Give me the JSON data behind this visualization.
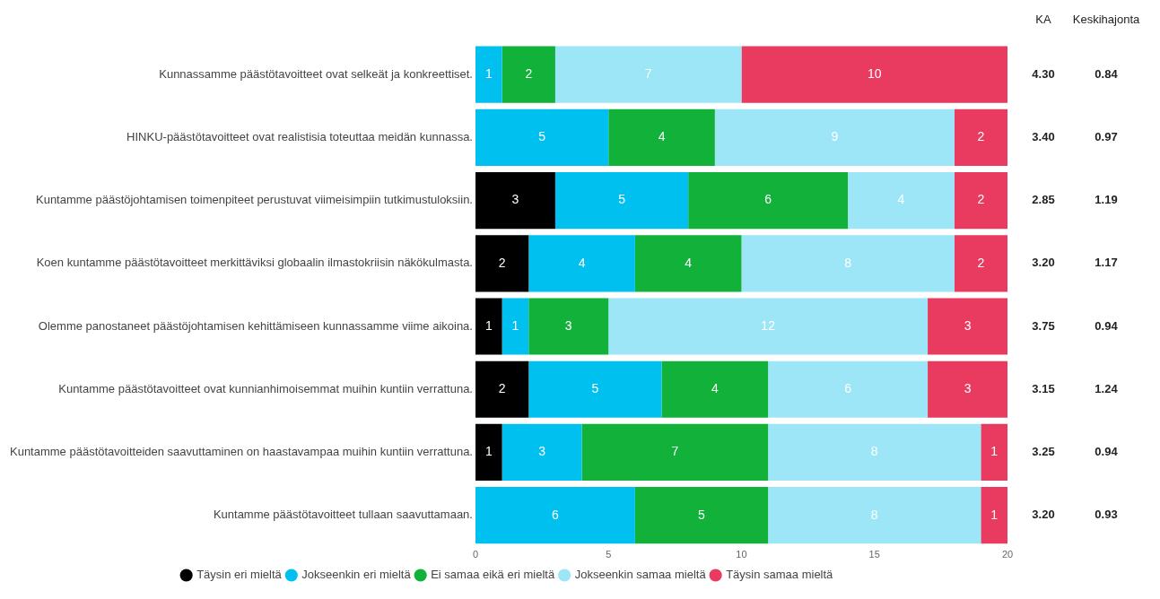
{
  "chart_data": {
    "type": "bar",
    "orientation": "horizontal",
    "stacked": true,
    "categories": [
      "Kunnassamme päästötavoitteet ovat selkeät ja konkreettiset.",
      "HINKU-päästötavoitteet ovat realistisia toteuttaa meidän kunnassa.",
      "Kuntamme päästöjohtamisen toimenpiteet perustuvat viimeisimpiin tutkimustuloksiin.",
      "Koen kuntamme päästötavoitteet merkittäviksi globaalin ilmastokriisin näkökulmasta.",
      "Olemme panostaneet päästöjohtamisen kehittämiseen kunnassamme viime aikoina.",
      "Kuntamme päästötavoitteet ovat kunnianhimoisemmat muihin kuntiin verrattuna.",
      "Kuntamme päästötavoitteiden saavuttaminen on haastavampaa muihin kuntiin verrattuna.",
      "Kuntamme päästötavoitteet tullaan saavuttamaan."
    ],
    "series": [
      {
        "name": "Täysin eri mieltä",
        "color": "#000000",
        "values": [
          0,
          0,
          3,
          2,
          1,
          2,
          1,
          0
        ],
        "value_labels": [
          null,
          null,
          "3",
          "2",
          "1",
          "2",
          "1",
          null
        ]
      },
      {
        "name": "Jokseenkin eri mieltä",
        "color": "#00c0ef",
        "values": [
          1,
          5,
          5,
          4,
          1,
          5,
          3,
          6
        ],
        "value_labels": [
          "1",
          "5",
          "5",
          "4",
          "1",
          "5",
          "3",
          "6"
        ]
      },
      {
        "name": "Ei samaa eikä eri mieltä",
        "color": "#12b13a",
        "values": [
          2,
          4,
          6,
          4,
          3,
          4,
          7,
          5
        ],
        "value_labels": [
          "2",
          "4",
          "6",
          "4",
          "3",
          "4",
          "7",
          "5"
        ]
      },
      {
        "name": "Jokseenkin samaa mieltä",
        "color": "#9de6f7",
        "values": [
          7,
          9,
          4,
          8,
          12,
          6,
          8,
          8
        ],
        "value_labels": [
          "7",
          "9",
          "4",
          "8",
          "12",
          "6",
          "8",
          "8"
        ]
      },
      {
        "name": "Täysin samaa mieltä",
        "color": "#e93a60",
        "values": [
          10,
          2,
          2,
          2,
          3,
          3,
          1,
          1
        ],
        "value_labels": [
          "10",
          "2",
          "2",
          "2",
          "3",
          "3",
          "1",
          "1"
        ]
      }
    ],
    "xlim": [
      0,
      20
    ],
    "xticks": [
      0,
      5,
      10,
      15,
      20
    ],
    "grid": false,
    "legend": "bottom",
    "annotations": [
      "KA",
      "Keskihajonta",
      "4.30",
      "0.84",
      "3.40",
      "0.97",
      "2.85",
      "1.19",
      "3.20",
      "1.17",
      "3.75",
      "0.94",
      "3.15",
      "1.24",
      "3.25",
      "0.94",
      "3.20",
      "0.93"
    ]
  }
}
